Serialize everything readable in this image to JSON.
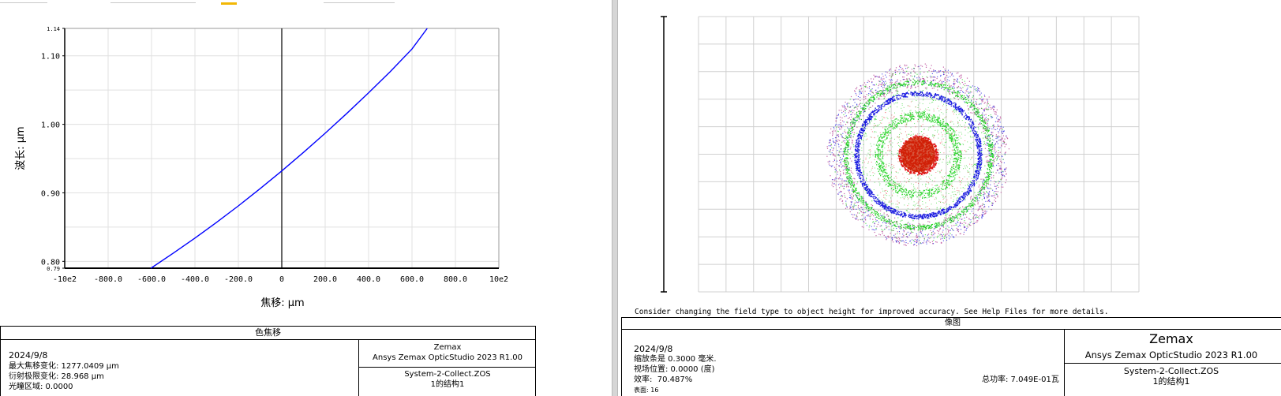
{
  "chart_data": [
    {
      "type": "line",
      "title": "色焦移",
      "xlabel": "焦移: µm",
      "ylabel": "波长: µm",
      "xlim": [
        -1000,
        1000
      ],
      "ylim": [
        0.79,
        1.14
      ],
      "x_tick_labels": [
        "-10e2",
        "-800.0",
        "-600.0",
        "-400.0",
        "-200.0",
        "0",
        "200.0",
        "400.0",
        "600.0",
        "800.0",
        "10e2"
      ],
      "y_tick_labels": [
        "0.79",
        "0.80",
        "0.90",
        "1.00",
        "1.10",
        "1.14"
      ],
      "series": [
        {
          "color": "#0000ff",
          "x": [
            -603,
            -500,
            -400,
            -300,
            -200,
            -100,
            0,
            100,
            200,
            300,
            400,
            500,
            600,
            670
          ],
          "y": [
            0.79,
            0.812,
            0.834,
            0.857,
            0.881,
            0.906,
            0.932,
            0.959,
            0.987,
            1.016,
            1.046,
            1.077,
            1.11,
            1.14
          ]
        }
      ]
    },
    {
      "type": "scatter",
      "title": "像图",
      "description": "spot diagram",
      "rings": [
        {
          "color": "#dd0000",
          "label": "red core"
        },
        {
          "color": "#00cc00",
          "label": "green"
        },
        {
          "color": "#0000dd",
          "label": "blue"
        },
        {
          "color": "#b0308a",
          "label": "magenta halo"
        }
      ]
    }
  ],
  "left_info": {
    "title": "色焦移",
    "date": "2024/9/8",
    "line1": "最大焦移变化: 1277.0409 µm",
    "line2": "衍射极限变化: 28.968 µm",
    "line3": "光瞳区域: 0.0000",
    "brand": "Zemax",
    "product": "Ansys Zemax OpticStudio 2023 R1.00",
    "file": "System-2-Collect.ZOS",
    "config": "1的结构1"
  },
  "right_info": {
    "notice": "Consider changing the field type to object height for improved accuracy. See Help Files for more details.",
    "title": "像图",
    "date": "2024/9/8",
    "line1": "缩放条是 0.3000 毫米.",
    "line2": "视场位置: 0.0000 (度)",
    "line3": "效率:  70.487%",
    "line4": "表面: 16",
    "power": "总功率: 7.049E-01瓦",
    "brand": "Zemax",
    "product": "Ansys Zemax OpticStudio 2023 R1.00",
    "file": "System-2-Collect.ZOS",
    "config": "1的结构1"
  }
}
